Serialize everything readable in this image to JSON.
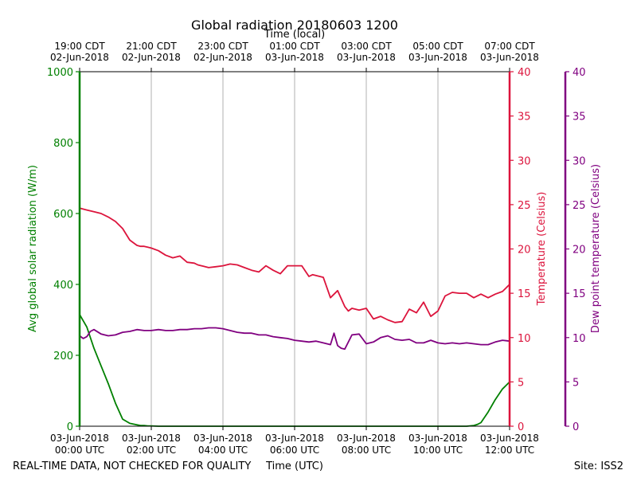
{
  "chart_data": {
    "type": "line",
    "title": "Global radiation 20180603 1200",
    "top_axis_label": "Time (local)",
    "xlabel": "Time (UTC)",
    "footer_left": "REAL-TIME DATA, NOT CHECKED FOR QUALITY",
    "footer_right": "Site: ISS2",
    "x_hours_range": [
      0,
      12
    ],
    "bottom_ticks": [
      {
        "hour": 0,
        "line1": "03-Jun-2018",
        "line2": "00:00 UTC"
      },
      {
        "hour": 2,
        "line1": "03-Jun-2018",
        "line2": "02:00 UTC"
      },
      {
        "hour": 4,
        "line1": "03-Jun-2018",
        "line2": "04:00 UTC"
      },
      {
        "hour": 6,
        "line1": "03-Jun-2018",
        "line2": "06:00 UTC"
      },
      {
        "hour": 8,
        "line1": "03-Jun-2018",
        "line2": "08:00 UTC"
      },
      {
        "hour": 10,
        "line1": "03-Jun-2018",
        "line2": "10:00 UTC"
      },
      {
        "hour": 12,
        "line1": "03-Jun-2018",
        "line2": "12:00 UTC"
      }
    ],
    "top_ticks": [
      {
        "hour": 0,
        "line1": "19:00 CDT",
        "line2": "02-Jun-2018"
      },
      {
        "hour": 2,
        "line1": "21:00 CDT",
        "line2": "02-Jun-2018"
      },
      {
        "hour": 4,
        "line1": "23:00 CDT",
        "line2": "02-Jun-2018"
      },
      {
        "hour": 6,
        "line1": "01:00 CDT",
        "line2": "03-Jun-2018"
      },
      {
        "hour": 8,
        "line1": "03:00 CDT",
        "line2": "03-Jun-2018"
      },
      {
        "hour": 10,
        "line1": "05:00 CDT",
        "line2": "03-Jun-2018"
      },
      {
        "hour": 12,
        "line1": "07:00 CDT",
        "line2": "03-Jun-2018"
      }
    ],
    "axes": {
      "radiation": {
        "label": "Avg global solar radiation (W/m)",
        "range": [
          0,
          1000
        ],
        "ticks": [
          0,
          200,
          400,
          600,
          800,
          1000
        ],
        "color": "#008000"
      },
      "temperature": {
        "label": "Temperature (Celsius)",
        "range": [
          0,
          40
        ],
        "ticks": [
          0,
          5,
          10,
          15,
          20,
          25,
          30,
          35,
          40
        ],
        "color": "#dc143c"
      },
      "dewpoint": {
        "label": "Dew point temperature (Celsius)",
        "range": [
          0,
          40
        ],
        "ticks": [
          0,
          5,
          10,
          15,
          20,
          25,
          30,
          35,
          40
        ],
        "color": "#800080"
      }
    },
    "series": [
      {
        "name": "Avg global solar radiation",
        "axis": "radiation",
        "color": "#008000",
        "x": [
          0,
          0.2,
          0.4,
          0.6,
          0.8,
          1.0,
          1.2,
          1.4,
          1.6,
          1.7,
          1.8,
          1.9,
          2.0,
          2.2,
          2.5,
          3,
          4,
          6,
          8,
          10,
          10.8,
          11.0,
          11.1,
          11.2,
          11.4,
          11.6,
          11.8,
          12.0
        ],
        "values": [
          315,
          280,
          220,
          170,
          120,
          65,
          20,
          8,
          4,
          2,
          2,
          1,
          1,
          0,
          0,
          0,
          0,
          0,
          0,
          0,
          0,
          2,
          5,
          10,
          40,
          75,
          105,
          125
        ]
      },
      {
        "name": "Temperature",
        "axis": "temperature",
        "color": "#dc143c",
        "x": [
          0,
          0.2,
          0.4,
          0.6,
          0.8,
          1.0,
          1.2,
          1.4,
          1.6,
          1.7,
          1.8,
          1.9,
          2.0,
          2.2,
          2.4,
          2.6,
          2.8,
          3.0,
          3.2,
          3.3,
          3.4,
          3.6,
          3.8,
          4.0,
          4.2,
          4.4,
          4.6,
          4.8,
          5.0,
          5.2,
          5.4,
          5.6,
          5.8,
          6.0,
          6.2,
          6.4,
          6.5,
          6.6,
          6.8,
          7.0,
          7.2,
          7.4,
          7.5,
          7.6,
          7.8,
          8.0,
          8.2,
          8.4,
          8.6,
          8.8,
          9.0,
          9.2,
          9.4,
          9.6,
          9.8,
          10.0,
          10.2,
          10.4,
          10.6,
          10.8,
          11.0,
          11.2,
          11.4,
          11.6,
          11.8,
          12.0
        ],
        "values": [
          24.6,
          24.4,
          24.2,
          24.0,
          23.6,
          23.1,
          22.3,
          21.0,
          20.4,
          20.3,
          20.3,
          20.2,
          20.1,
          19.8,
          19.3,
          19.0,
          19.2,
          18.5,
          18.4,
          18.2,
          18.1,
          17.9,
          18.0,
          18.1,
          18.3,
          18.2,
          17.9,
          17.6,
          17.4,
          18.1,
          17.6,
          17.2,
          18.1,
          18.1,
          18.1,
          16.9,
          17.1,
          17.0,
          16.8,
          14.5,
          15.3,
          13.5,
          13.0,
          13.3,
          13.1,
          13.3,
          12.1,
          12.4,
          12.0,
          11.7,
          11.8,
          13.2,
          12.8,
          14.0,
          12.4,
          13.0,
          14.7,
          15.1,
          15.0,
          15.0,
          14.5,
          14.9,
          14.5,
          14.9,
          15.2,
          16.0
        ]
      },
      {
        "name": "Dew point temperature",
        "axis": "dewpoint",
        "color": "#800080",
        "x": [
          0,
          0.1,
          0.2,
          0.3,
          0.4,
          0.6,
          0.8,
          1.0,
          1.2,
          1.4,
          1.6,
          1.8,
          2.0,
          2.2,
          2.4,
          2.6,
          2.8,
          3.0,
          3.2,
          3.4,
          3.6,
          3.8,
          4.0,
          4.2,
          4.4,
          4.6,
          4.8,
          5.0,
          5.2,
          5.4,
          5.6,
          5.8,
          6.0,
          6.2,
          6.4,
          6.6,
          6.8,
          7.0,
          7.1,
          7.2,
          7.3,
          7.4,
          7.6,
          7.8,
          8.0,
          8.2,
          8.4,
          8.6,
          8.8,
          9.0,
          9.2,
          9.4,
          9.6,
          9.8,
          10.0,
          10.2,
          10.4,
          10.6,
          10.8,
          11.0,
          11.2,
          11.4,
          11.6,
          11.8,
          12.0
        ],
        "values": [
          10.2,
          9.9,
          10.1,
          10.7,
          10.9,
          10.4,
          10.2,
          10.3,
          10.6,
          10.7,
          10.9,
          10.8,
          10.8,
          10.9,
          10.8,
          10.8,
          10.9,
          10.9,
          11.0,
          11.0,
          11.1,
          11.1,
          11.0,
          10.8,
          10.6,
          10.5,
          10.5,
          10.3,
          10.3,
          10.1,
          10.0,
          9.9,
          9.7,
          9.6,
          9.5,
          9.6,
          9.4,
          9.2,
          10.5,
          9.1,
          8.8,
          8.7,
          10.3,
          10.4,
          9.3,
          9.5,
          10.0,
          10.2,
          9.8,
          9.7,
          9.8,
          9.4,
          9.4,
          9.7,
          9.4,
          9.3,
          9.4,
          9.3,
          9.4,
          9.3,
          9.2,
          9.2,
          9.5,
          9.7,
          9.6
        ]
      }
    ]
  }
}
